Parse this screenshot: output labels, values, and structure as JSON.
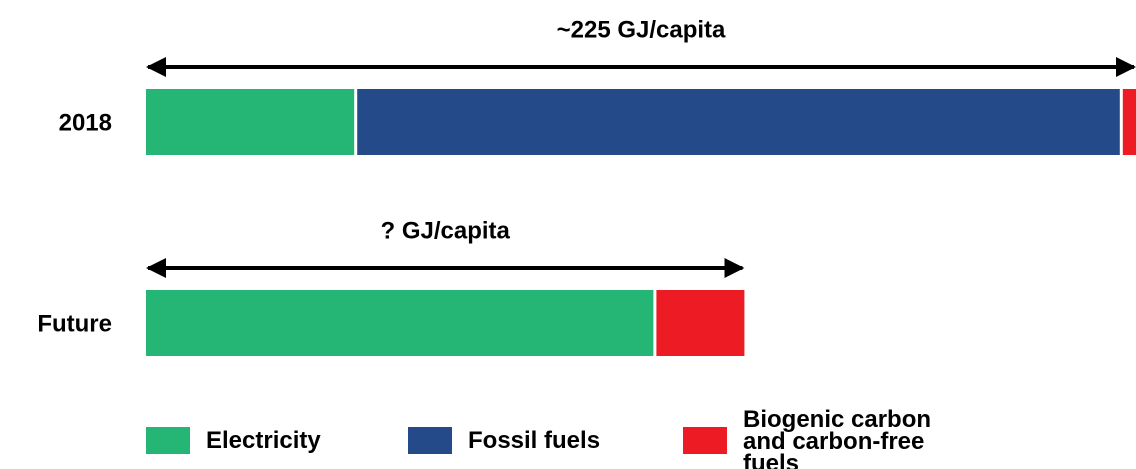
{
  "chart_data": {
    "type": "stacked-bar-horizontal",
    "categories": [
      "2018",
      "Future"
    ],
    "annotations": [
      "~225 GJ/capita",
      "? GJ/capita"
    ],
    "series": [
      {
        "name": "Electricity",
        "color": "#25b574",
        "values": [
          48,
          116
        ]
      },
      {
        "name": "Fossil fuels",
        "color": "#254a8a",
        "values": [
          174,
          null
        ]
      },
      {
        "name": "Biogenic carbon and carbon-free fuels",
        "color": "#ed1c24",
        "values": [
          3,
          20
        ]
      }
    ],
    "xlim": [
      0,
      225
    ]
  }
}
